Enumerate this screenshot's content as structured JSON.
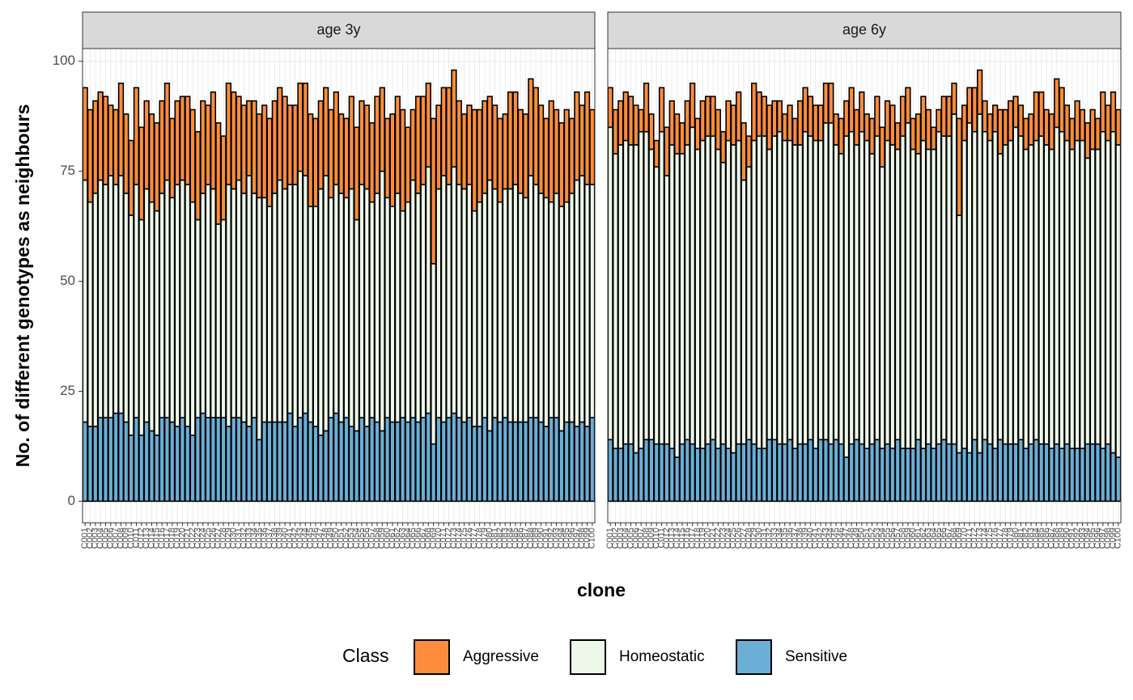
{
  "chart_data": [
    {
      "type": "bar",
      "stacked": true,
      "title": "age 3y",
      "categories": [
        "C001",
        "C002",
        "C003",
        "C004",
        "C005",
        "C006",
        "C007",
        "C008",
        "C009",
        "C010",
        "C011",
        "C012",
        "C013",
        "C014",
        "C015",
        "C016",
        "C017",
        "C018",
        "C019",
        "C020",
        "C021",
        "C022",
        "C023",
        "C024",
        "C025",
        "C026",
        "C027",
        "C028",
        "C029",
        "C030",
        "C031",
        "C032",
        "C033",
        "C034",
        "C035",
        "C036",
        "C037",
        "C038",
        "C039",
        "C040",
        "C041",
        "C042",
        "C043",
        "C044",
        "C045",
        "C046",
        "C047",
        "C048",
        "C049",
        "C050",
        "C051",
        "C052",
        "C053",
        "C054",
        "C055",
        "C056",
        "C057",
        "C058",
        "C059",
        "C060",
        "C061",
        "C062",
        "C063",
        "C064",
        "C065",
        "C066",
        "C067",
        "C068",
        "C069",
        "C070",
        "C071",
        "C072",
        "C073",
        "C074",
        "C075",
        "C076",
        "C077",
        "C078",
        "C079",
        "C080",
        "C081",
        "C082",
        "C083",
        "C084",
        "C085",
        "C086",
        "C087",
        "C088",
        "C089",
        "C090",
        "C091",
        "C092",
        "C093",
        "C094",
        "C095",
        "C096",
        "C097",
        "C098",
        "C099",
        "C100"
      ],
      "series": [
        {
          "name": "Sensitive",
          "color": "#6baed6",
          "values": [
            18,
            17,
            17,
            19,
            19,
            19,
            20,
            20,
            18,
            15,
            19,
            15,
            18,
            16,
            15,
            19,
            19,
            18,
            17,
            19,
            17,
            15,
            19,
            20,
            19,
            19,
            19,
            19,
            17,
            19,
            19,
            18,
            17,
            19,
            14,
            18,
            18,
            18,
            18,
            18,
            20,
            17,
            19,
            20,
            18,
            17,
            15,
            16,
            19,
            20,
            18,
            19,
            17,
            16,
            19,
            17,
            19,
            18,
            16,
            19,
            18,
            18,
            19,
            18,
            19,
            18,
            19,
            20,
            13,
            19,
            18,
            19,
            20,
            19,
            18,
            19,
            17,
            17,
            19,
            16,
            19,
            18,
            19,
            18,
            18,
            18,
            18,
            19,
            19,
            18,
            17,
            19,
            19,
            16,
            18,
            18,
            17,
            18,
            17,
            19
          ]
        },
        {
          "name": "Homeostatic",
          "color": "#edf8e9",
          "values": [
            55,
            51,
            53,
            54,
            53,
            55,
            52,
            54,
            52,
            50,
            53,
            49,
            53,
            52,
            51,
            51,
            54,
            51,
            55,
            54,
            55,
            53,
            45,
            50,
            53,
            52,
            44,
            45,
            55,
            52,
            54,
            52,
            57,
            51,
            55,
            51,
            49,
            52,
            55,
            53,
            52,
            55,
            56,
            54,
            49,
            50,
            56,
            58,
            50,
            52,
            52,
            50,
            54,
            48,
            53,
            54,
            49,
            52,
            59,
            50,
            49,
            52,
            47,
            50,
            54,
            52,
            53,
            56,
            41,
            52,
            56,
            53,
            56,
            53,
            53,
            53,
            49,
            51,
            51,
            57,
            52,
            50,
            52,
            53,
            54,
            52,
            51,
            55,
            53,
            52,
            52,
            49,
            51,
            51,
            50,
            52,
            56,
            56,
            55,
            53
          ]
        },
        {
          "name": "Aggressive",
          "color": "#fd8d3c",
          "values": [
            21,
            21,
            21,
            20,
            20,
            16,
            17,
            21,
            18,
            17,
            22,
            21,
            20,
            20,
            20,
            21,
            22,
            18,
            19,
            19,
            20,
            21,
            20,
            21,
            18,
            22,
            23,
            19,
            23,
            22,
            19,
            20,
            17,
            21,
            19,
            21,
            20,
            21,
            21,
            21,
            18,
            18,
            20,
            21,
            21,
            20,
            20,
            20,
            20,
            21,
            18,
            18,
            21,
            21,
            19,
            19,
            18,
            22,
            19,
            18,
            21,
            22,
            23,
            17,
            16,
            22,
            20,
            19,
            33,
            19,
            20,
            22,
            22,
            19,
            17,
            18,
            23,
            21,
            21,
            19,
            19,
            19,
            17,
            22,
            21,
            19,
            19,
            22,
            22,
            20,
            18,
            23,
            19,
            19,
            21,
            17,
            20,
            16,
            21,
            17
          ]
        }
      ],
      "ylim": [
        -4.9,
        102.9
      ],
      "yticks": [
        0,
        25,
        50,
        75,
        100
      ],
      "grid": true,
      "xlabel": "clone",
      "ylabel": "No. of different genotypes as neighbours",
      "legend_title": "Class",
      "legend": "bottom"
    },
    {
      "type": "bar",
      "stacked": true,
      "title": "age 6y",
      "categories": [
        "C001",
        "C002",
        "C003",
        "C004",
        "C005",
        "C006",
        "C007",
        "C008",
        "C009",
        "C010",
        "C011",
        "C012",
        "C013",
        "C014",
        "C015",
        "C016",
        "C017",
        "C018",
        "C019",
        "C020",
        "C021",
        "C022",
        "C023",
        "C024",
        "C025",
        "C026",
        "C027",
        "C028",
        "C029",
        "C030",
        "C031",
        "C032",
        "C033",
        "C034",
        "C035",
        "C036",
        "C037",
        "C038",
        "C039",
        "C040",
        "C041",
        "C042",
        "C043",
        "C044",
        "C045",
        "C046",
        "C047",
        "C048",
        "C049",
        "C050",
        "C051",
        "C052",
        "C053",
        "C054",
        "C055",
        "C056",
        "C057",
        "C058",
        "C059",
        "C060",
        "C061",
        "C062",
        "C063",
        "C064",
        "C065",
        "C066",
        "C067",
        "C068",
        "C069",
        "C070",
        "C071",
        "C072",
        "C073",
        "C074",
        "C075",
        "C076",
        "C077",
        "C078",
        "C079",
        "C080",
        "C081",
        "C082",
        "C083",
        "C084",
        "C085",
        "C086",
        "C087",
        "C088",
        "C089",
        "C090",
        "C091",
        "C092",
        "C093",
        "C094",
        "C095",
        "C096",
        "C097",
        "C098",
        "C099",
        "C100"
      ],
      "series": [
        {
          "name": "Sensitive",
          "color": "#6baed6",
          "values": [
            14,
            12,
            12,
            13,
            13,
            11,
            12,
            14,
            14,
            13,
            13,
            13,
            12,
            10,
            13,
            14,
            13,
            12,
            12,
            13,
            14,
            12,
            13,
            12,
            11,
            13,
            13,
            14,
            13,
            12,
            12,
            14,
            14,
            13,
            13,
            14,
            12,
            13,
            13,
            14,
            12,
            14,
            14,
            13,
            14,
            13,
            10,
            13,
            14,
            13,
            12,
            13,
            14,
            12,
            13,
            12,
            14,
            12,
            12,
            12,
            14,
            12,
            13,
            12,
            13,
            14,
            13,
            13,
            11,
            12,
            11,
            14,
            11,
            14,
            13,
            12,
            14,
            13,
            13,
            13,
            14,
            12,
            13,
            14,
            13,
            13,
            12,
            13,
            12,
            13,
            12,
            12,
            12,
            13,
            13,
            13,
            12,
            13,
            11,
            10
          ]
        },
        {
          "name": "Homeostatic",
          "color": "#edf8e9",
          "values": [
            71,
            67,
            69,
            69,
            68,
            70,
            72,
            70,
            66,
            63,
            71,
            61,
            69,
            69,
            66,
            67,
            72,
            68,
            70,
            70,
            69,
            68,
            64,
            70,
            70,
            69,
            60,
            62,
            69,
            71,
            71,
            66,
            69,
            71,
            69,
            68,
            69,
            68,
            71,
            69,
            70,
            68,
            72,
            73,
            67,
            66,
            73,
            71,
            67,
            71,
            70,
            66,
            69,
            64,
            69,
            69,
            66,
            71,
            74,
            68,
            65,
            70,
            67,
            68,
            71,
            69,
            70,
            75,
            54,
            70,
            75,
            70,
            77,
            70,
            69,
            72,
            65,
            68,
            69,
            72,
            69,
            68,
            68,
            68,
            70,
            68,
            68,
            72,
            72,
            69,
            68,
            70,
            70,
            65,
            67,
            67,
            72,
            69,
            73,
            71
          ]
        },
        {
          "name": "Aggressive",
          "color": "#fd8d3c",
          "values": [
            9,
            10,
            10,
            11,
            11,
            9,
            5,
            11,
            8,
            6,
            10,
            11,
            10,
            9,
            7,
            10,
            10,
            7,
            9,
            9,
            9,
            9,
            7,
            9,
            9,
            11,
            13,
            7,
            13,
            10,
            9,
            10,
            8,
            7,
            6,
            8,
            6,
            10,
            10,
            9,
            8,
            8,
            9,
            9,
            7,
            8,
            8,
            10,
            8,
            9,
            6,
            8,
            9,
            9,
            9,
            9,
            6,
            9,
            8,
            7,
            9,
            10,
            9,
            5,
            5,
            9,
            9,
            7,
            22,
            8,
            8,
            10,
            10,
            7,
            6,
            6,
            10,
            8,
            9,
            7,
            7,
            7,
            7,
            11,
            10,
            8,
            8,
            11,
            10,
            8,
            7,
            9,
            7,
            8,
            9,
            7,
            9,
            8,
            9,
            8
          ]
        }
      ],
      "ylim": [
        -4.9,
        102.9
      ],
      "yticks": [
        0,
        25,
        50,
        75,
        100
      ],
      "grid": true
    }
  ]
}
